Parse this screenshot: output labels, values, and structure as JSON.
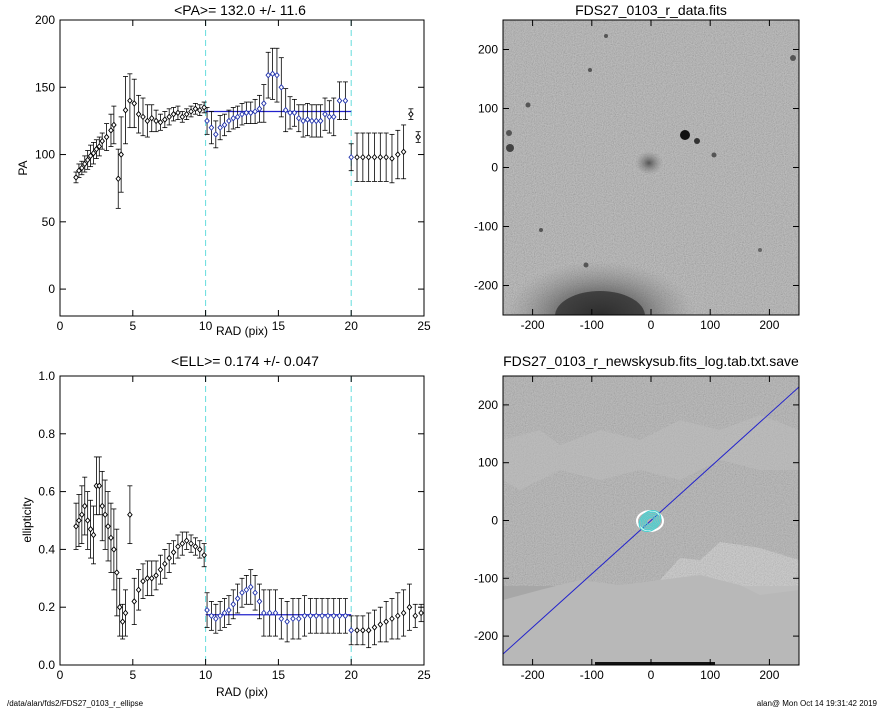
{
  "footer": {
    "left": "/data/alan/fds2/FDS27_0103_r_ellipse",
    "right": "alan@  Mon Oct 14 19:31:42 2019"
  },
  "colors": {
    "fit": "#2222cc",
    "guide": "#66dddd",
    "points": "#000000",
    "fitpoints": "#2233aa"
  },
  "chart_data": [
    {
      "type": "scatter",
      "title": "<PA>= 132.0 +/-  11.6",
      "xlabel": "RAD (pix)",
      "ylabel": "PA",
      "xlim": [
        0,
        25
      ],
      "ylim": [
        -20,
        200
      ],
      "xticks": [
        0,
        5,
        10,
        15,
        20,
        25
      ],
      "yticks": [
        0,
        50,
        100,
        150,
        200
      ],
      "vlines": [
        10,
        20
      ],
      "fit": {
        "value": 132.0,
        "x_range": [
          10,
          20
        ]
      },
      "x": [
        1.1,
        1.3,
        1.5,
        1.7,
        1.9,
        2.1,
        2.3,
        2.5,
        2.7,
        2.9,
        3.2,
        3.5,
        3.7,
        4.0,
        4.2,
        4.5,
        4.8,
        5.1,
        5.4,
        5.7,
        6.0,
        6.3,
        6.6,
        6.9,
        7.2,
        7.5,
        7.8,
        8.1,
        8.4,
        8.7,
        9.0,
        9.3,
        9.6,
        9.9,
        10.1,
        10.4,
        10.7,
        11.0,
        11.3,
        11.6,
        11.9,
        12.2,
        12.5,
        12.8,
        13.1,
        13.4,
        13.7,
        14.0,
        14.3,
        14.6,
        14.9,
        15.2,
        15.5,
        15.8,
        16.1,
        16.4,
        16.7,
        17.0,
        17.3,
        17.6,
        17.9,
        18.2,
        18.5,
        18.8,
        19.2,
        19.6,
        20.0,
        20.4,
        20.8,
        21.2,
        21.6,
        22.0,
        22.4,
        22.8,
        23.2,
        23.6,
        24.1,
        24.6
      ],
      "y": [
        83,
        88,
        90,
        93,
        96,
        99,
        101,
        104,
        106,
        110,
        113,
        118,
        122,
        82,
        100,
        133,
        140,
        138,
        130,
        128,
        125,
        127,
        125,
        124,
        126,
        128,
        130,
        131,
        128,
        130,
        132,
        134,
        133,
        135,
        125,
        120,
        115,
        120,
        122,
        125,
        127,
        128,
        130,
        131,
        131,
        132,
        134,
        138,
        159,
        160,
        159,
        150,
        133,
        131,
        131,
        127,
        125,
        126,
        125,
        125,
        125,
        130,
        128,
        128,
        140,
        140,
        98,
        98,
        98,
        98,
        98,
        98,
        98,
        97,
        100,
        102,
        130,
        113
      ],
      "yerr": [
        4,
        5,
        5,
        6,
        7,
        8,
        8,
        7,
        7,
        6,
        10,
        12,
        14,
        22,
        28,
        25,
        20,
        18,
        14,
        14,
        12,
        10,
        8,
        6,
        6,
        6,
        5,
        5,
        4,
        4,
        4,
        4,
        4,
        4,
        10,
        12,
        10,
        9,
        8,
        8,
        8,
        8,
        8,
        8,
        8,
        9,
        10,
        14,
        17,
        19,
        20,
        22,
        16,
        12,
        10,
        10,
        12,
        12,
        12,
        12,
        12,
        12,
        12,
        14,
        14,
        14,
        10,
        18,
        18,
        18,
        18,
        18,
        18,
        18,
        18,
        20,
        4,
        4
      ]
    },
    {
      "type": "image",
      "title": "FDS27_0103_r_data.fits",
      "xlim": [
        -250,
        250
      ],
      "ylim": [
        -250,
        250
      ],
      "xticks": [
        -200,
        -100,
        0,
        100,
        200
      ],
      "yticks": [
        -200,
        -100,
        0,
        100,
        200
      ]
    },
    {
      "type": "scatter",
      "title": "<ELL>= 0.174 +/-  0.047",
      "xlabel": "RAD (pix)",
      "ylabel": "ellipticity",
      "xlim": [
        0,
        25
      ],
      "ylim": [
        0,
        1
      ],
      "xticks": [
        0,
        5,
        10,
        15,
        20,
        25
      ],
      "yticks": [
        0.0,
        0.2,
        0.4,
        0.6,
        0.8,
        1.0
      ],
      "ytick_labels": [
        "0.0",
        "0.2",
        "0.4",
        "0.6",
        "0.8",
        "1.0"
      ],
      "vlines": [
        10,
        20
      ],
      "fit": {
        "value": 0.174,
        "x_range": [
          10,
          20
        ]
      },
      "x": [
        1.1,
        1.3,
        1.5,
        1.7,
        1.9,
        2.1,
        2.3,
        2.5,
        2.7,
        2.9,
        3.1,
        3.3,
        3.5,
        3.7,
        3.9,
        4.1,
        4.3,
        4.5,
        4.8,
        5.1,
        5.4,
        5.7,
        6.0,
        6.3,
        6.6,
        6.9,
        7.2,
        7.5,
        7.8,
        8.1,
        8.4,
        8.7,
        9.0,
        9.3,
        9.6,
        9.9,
        10.1,
        10.4,
        10.7,
        11.0,
        11.3,
        11.6,
        11.9,
        12.2,
        12.5,
        12.8,
        13.1,
        13.4,
        13.7,
        14.0,
        14.4,
        14.8,
        15.2,
        15.6,
        16.0,
        16.4,
        16.8,
        17.2,
        17.6,
        18.0,
        18.4,
        18.8,
        19.2,
        19.6,
        20.0,
        20.4,
        20.8,
        21.2,
        21.6,
        22.0,
        22.4,
        22.8,
        23.2,
        23.6,
        24.0,
        24.4,
        24.8
      ],
      "y": [
        0.48,
        0.5,
        0.52,
        0.55,
        0.5,
        0.47,
        0.45,
        0.62,
        0.62,
        0.55,
        0.52,
        0.48,
        0.44,
        0.4,
        0.32,
        0.2,
        0.15,
        0.18,
        0.52,
        0.22,
        0.26,
        0.29,
        0.3,
        0.3,
        0.31,
        0.33,
        0.35,
        0.37,
        0.39,
        0.41,
        0.42,
        0.43,
        0.42,
        0.41,
        0.4,
        0.38,
        0.19,
        0.17,
        0.16,
        0.17,
        0.18,
        0.19,
        0.21,
        0.23,
        0.25,
        0.26,
        0.27,
        0.25,
        0.22,
        0.18,
        0.18,
        0.18,
        0.16,
        0.15,
        0.16,
        0.16,
        0.17,
        0.17,
        0.17,
        0.17,
        0.17,
        0.17,
        0.17,
        0.17,
        0.12,
        0.12,
        0.12,
        0.12,
        0.13,
        0.14,
        0.15,
        0.16,
        0.17,
        0.18,
        0.2,
        0.17,
        0.18
      ],
      "yerr": [
        0.08,
        0.09,
        0.1,
        0.1,
        0.1,
        0.1,
        0.1,
        0.1,
        0.1,
        0.12,
        0.12,
        0.12,
        0.12,
        0.14,
        0.15,
        0.1,
        0.06,
        0.08,
        0.1,
        0.08,
        0.07,
        0.06,
        0.06,
        0.06,
        0.05,
        0.05,
        0.05,
        0.05,
        0.04,
        0.04,
        0.04,
        0.03,
        0.03,
        0.03,
        0.03,
        0.04,
        0.06,
        0.05,
        0.05,
        0.05,
        0.05,
        0.05,
        0.05,
        0.05,
        0.05,
        0.05,
        0.06,
        0.06,
        0.06,
        0.08,
        0.08,
        0.08,
        0.07,
        0.07,
        0.07,
        0.07,
        0.07,
        0.06,
        0.06,
        0.06,
        0.06,
        0.06,
        0.06,
        0.06,
        0.05,
        0.05,
        0.05,
        0.06,
        0.06,
        0.06,
        0.07,
        0.07,
        0.08,
        0.08,
        0.08,
        0.04,
        0.03
      ]
    },
    {
      "type": "image",
      "title": "FDS27_0103_r_newskysub.fits_log.tab.txt.save",
      "xlim": [
        -250,
        250
      ],
      "ylim": [
        -250,
        250
      ],
      "xticks": [
        -200,
        -100,
        0,
        100,
        200
      ],
      "yticks": [
        -200,
        -100,
        0,
        100,
        200
      ]
    }
  ]
}
